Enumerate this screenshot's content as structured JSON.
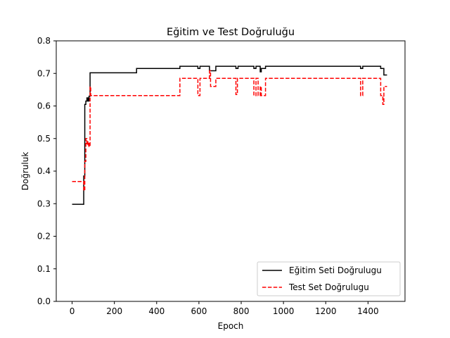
{
  "chart_data": {
    "type": "line",
    "title": "Eğitim ve Test Doğruluğu",
    "xlabel": "Epoch",
    "ylabel": "Doğruluk",
    "xlim": [
      -75,
      1575
    ],
    "ylim": [
      0.0,
      0.8
    ],
    "xticks": [
      0,
      200,
      400,
      600,
      800,
      1000,
      1200,
      1400
    ],
    "yticks": [
      0.0,
      0.1,
      0.2,
      0.3,
      0.4,
      0.5,
      0.6,
      0.7,
      0.8
    ],
    "grid": false,
    "legend_position": "lower-right",
    "series": [
      {
        "name": "Eğitim Seti Doğrulugu",
        "color": "#000000",
        "style": "solid",
        "points": [
          [
            0,
            0.298
          ],
          [
            55,
            0.298
          ],
          [
            55,
            0.385
          ],
          [
            60,
            0.385
          ],
          [
            60,
            0.605
          ],
          [
            65,
            0.605
          ],
          [
            65,
            0.615
          ],
          [
            70,
            0.615
          ],
          [
            70,
            0.625
          ],
          [
            75,
            0.625
          ],
          [
            75,
            0.615
          ],
          [
            80,
            0.615
          ],
          [
            80,
            0.63
          ],
          [
            85,
            0.63
          ],
          [
            85,
            0.702
          ],
          [
            305,
            0.702
          ],
          [
            305,
            0.715
          ],
          [
            510,
            0.715
          ],
          [
            510,
            0.722
          ],
          [
            595,
            0.722
          ],
          [
            595,
            0.715
          ],
          [
            605,
            0.715
          ],
          [
            605,
            0.722
          ],
          [
            650,
            0.722
          ],
          [
            650,
            0.708
          ],
          [
            680,
            0.708
          ],
          [
            680,
            0.722
          ],
          [
            775,
            0.722
          ],
          [
            775,
            0.715
          ],
          [
            785,
            0.715
          ],
          [
            785,
            0.722
          ],
          [
            860,
            0.722
          ],
          [
            860,
            0.715
          ],
          [
            870,
            0.715
          ],
          [
            870,
            0.722
          ],
          [
            890,
            0.722
          ],
          [
            890,
            0.705
          ],
          [
            895,
            0.705
          ],
          [
            895,
            0.715
          ],
          [
            915,
            0.715
          ],
          [
            915,
            0.722
          ],
          [
            1365,
            0.722
          ],
          [
            1365,
            0.715
          ],
          [
            1375,
            0.715
          ],
          [
            1375,
            0.722
          ],
          [
            1460,
            0.722
          ],
          [
            1460,
            0.715
          ],
          [
            1475,
            0.715
          ],
          [
            1475,
            0.695
          ],
          [
            1490,
            0.695
          ]
        ]
      },
      {
        "name": "Test Set Doğrulugu",
        "color": "#ff0000",
        "style": "dashed",
        "points": [
          [
            0,
            0.368
          ],
          [
            55,
            0.368
          ],
          [
            55,
            0.34
          ],
          [
            60,
            0.34
          ],
          [
            60,
            0.43
          ],
          [
            65,
            0.43
          ],
          [
            65,
            0.5
          ],
          [
            70,
            0.5
          ],
          [
            70,
            0.48
          ],
          [
            75,
            0.48
          ],
          [
            75,
            0.49
          ],
          [
            80,
            0.49
          ],
          [
            80,
            0.475
          ],
          [
            85,
            0.475
          ],
          [
            85,
            0.66
          ],
          [
            88,
            0.66
          ],
          [
            88,
            0.632
          ],
          [
            510,
            0.632
          ],
          [
            510,
            0.685
          ],
          [
            595,
            0.685
          ],
          [
            595,
            0.632
          ],
          [
            605,
            0.632
          ],
          [
            605,
            0.685
          ],
          [
            650,
            0.685
          ],
          [
            650,
            0.708
          ],
          [
            655,
            0.708
          ],
          [
            655,
            0.66
          ],
          [
            680,
            0.66
          ],
          [
            680,
            0.685
          ],
          [
            775,
            0.685
          ],
          [
            775,
            0.635
          ],
          [
            782,
            0.635
          ],
          [
            782,
            0.685
          ],
          [
            860,
            0.685
          ],
          [
            860,
            0.632
          ],
          [
            870,
            0.632
          ],
          [
            870,
            0.685
          ],
          [
            880,
            0.685
          ],
          [
            880,
            0.632
          ],
          [
            890,
            0.632
          ],
          [
            890,
            0.66
          ],
          [
            895,
            0.66
          ],
          [
            895,
            0.632
          ],
          [
            915,
            0.632
          ],
          [
            915,
            0.685
          ],
          [
            1365,
            0.685
          ],
          [
            1365,
            0.632
          ],
          [
            1375,
            0.632
          ],
          [
            1375,
            0.685
          ],
          [
            1460,
            0.685
          ],
          [
            1460,
            0.632
          ],
          [
            1470,
            0.632
          ],
          [
            1470,
            0.605
          ],
          [
            1475,
            0.605
          ],
          [
            1475,
            0.66
          ],
          [
            1490,
            0.66
          ]
        ]
      }
    ]
  }
}
